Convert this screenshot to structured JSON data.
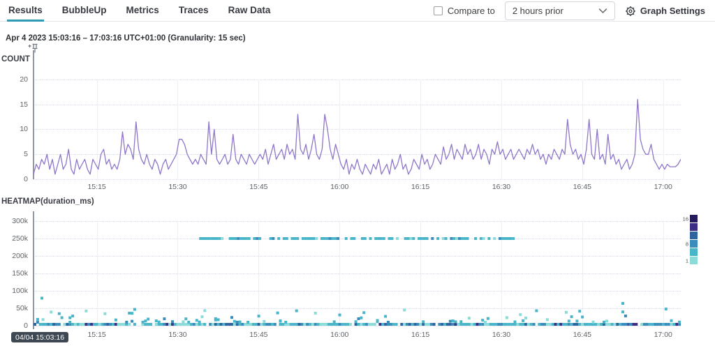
{
  "tabs": [
    {
      "label": "Results",
      "active": true
    },
    {
      "label": "BubbleUp",
      "active": false
    },
    {
      "label": "Metrics",
      "active": false
    },
    {
      "label": "Traces",
      "active": false
    },
    {
      "label": "Raw Data",
      "active": false
    }
  ],
  "controls": {
    "compare_label": "Compare to",
    "compare_checked": false,
    "compare_value": "2 hours prior",
    "settings_label": "Graph Settings"
  },
  "header": {
    "time_range": "Apr 4 2023 15:03:16 – 17:03:16 UTC+01:00 (Granularity: 15 sec)"
  },
  "colors": {
    "accent_teal": "#2e9ab3",
    "line_purple": "#8f76c9",
    "axis": "#9097a0",
    "grid_dotted": "#d8dae2",
    "grid_vertical": "#eff0f5",
    "tooltip_bg": "#3e4852"
  },
  "chart_data": [
    {
      "type": "line",
      "title": "COUNT",
      "color": "#8f76c9",
      "x_start": "15:03:16",
      "x_end": "17:03:16",
      "duration_min": 120,
      "sample_interval_sec": 30,
      "ylim": [
        0,
        20
      ],
      "y_ticks": [
        0,
        5,
        10,
        15,
        20
      ],
      "x_ticks": [
        {
          "label": "15:15",
          "min": 11.73
        },
        {
          "label": "15:30",
          "min": 26.73
        },
        {
          "label": "15:45",
          "min": 41.73
        },
        {
          "label": "16:00",
          "min": 56.73
        },
        {
          "label": "16:15",
          "min": 71.73
        },
        {
          "label": "16:30",
          "min": 86.73
        },
        {
          "label": "16:45",
          "min": 101.73
        },
        {
          "label": "17:00",
          "min": 116.73
        }
      ],
      "values": [
        1,
        3,
        2,
        4,
        3,
        5,
        2,
        4,
        1,
        3,
        5,
        2,
        3,
        6,
        2,
        1,
        4,
        2,
        3,
        4,
        2,
        1,
        4,
        3,
        2,
        5,
        6,
        3,
        4,
        2,
        3,
        2,
        4,
        9.5,
        5,
        7,
        6,
        4,
        11.5,
        6,
        4,
        3,
        5,
        3,
        2,
        4,
        3,
        1,
        3,
        4,
        2,
        3,
        4,
        5,
        8,
        8,
        7,
        5,
        4,
        3,
        4,
        3,
        5,
        4,
        3,
        11.5,
        5,
        10,
        4,
        3,
        4,
        5,
        3,
        4,
        9,
        4,
        3,
        5,
        4,
        3,
        5,
        4,
        3,
        4,
        5,
        4,
        6,
        3,
        5,
        7,
        4,
        5,
        6,
        4,
        7,
        5,
        6,
        4,
        13,
        6,
        5,
        7,
        4,
        6,
        9,
        5,
        4,
        6,
        13,
        10,
        6,
        4,
        7,
        5,
        3,
        2,
        4,
        1,
        3,
        2,
        4,
        2,
        1,
        3,
        2,
        1,
        3,
        2,
        4,
        1,
        2,
        3,
        1,
        4,
        2,
        3,
        5,
        2,
        3,
        1,
        2,
        4,
        3,
        2,
        5,
        3,
        4,
        2,
        3,
        5,
        4,
        3,
        6.5,
        4,
        5,
        7,
        4,
        6,
        5,
        4,
        7,
        5,
        6,
        4,
        5,
        7,
        4,
        6,
        5,
        3,
        6,
        5,
        7.5,
        5,
        6,
        4,
        5,
        6,
        4,
        5,
        6,
        5,
        4,
        6,
        5,
        7,
        5,
        6,
        4,
        5,
        3,
        5,
        4,
        6,
        5,
        4,
        6,
        5,
        12,
        7,
        5,
        6,
        4,
        5,
        3,
        6,
        12,
        5,
        4,
        10,
        4,
        5,
        3,
        9,
        4,
        5,
        3,
        4,
        2,
        3,
        4,
        2,
        3,
        5,
        16,
        8,
        6,
        5,
        5,
        7,
        4,
        3,
        2,
        3,
        2,
        3,
        2.5,
        2.5,
        2.5,
        3,
        4
      ]
    },
    {
      "type": "heatmap",
      "title": "HEATMAP(duration_ms)",
      "tooltip": "04/04 15:03:16",
      "duration_min": 120,
      "ylim": [
        0,
        300000
      ],
      "y_ticks": [
        "0",
        "50k",
        "100k",
        "150k",
        "200k",
        "250k",
        "300k"
      ],
      "y_tick_step": 50000,
      "seed": 7,
      "palette_dark_to_light": [
        "#261a5e",
        "#3d2d84",
        "#2f639f",
        "#3a8cba",
        "#49b5c9",
        "#8bdbd9"
      ],
      "legend": {
        "max_label": "16",
        "mid_label": "8",
        "min_label": "1",
        "labels": [
          {
            "label": "16",
            "swatch_index": 0
          },
          {
            "label": "8",
            "swatch_index": 3
          },
          {
            "label": "1",
            "swatch_index": 5
          }
        ]
      },
      "bands": [
        {
          "type": "dense-row",
          "y_value": 0,
          "t_start": 0,
          "t_end": 120,
          "density": 0.95
        },
        {
          "type": "stack",
          "y_min": 6000,
          "y_max": 45000,
          "t_start": 0,
          "t_end": 120,
          "density": 0.22,
          "left_boost_until_min": 33,
          "left_boost_factor": 1.7
        },
        {
          "type": "dash-row",
          "y_value": 250000,
          "t_start": 30.7,
          "t_end": 89.6,
          "density": 0.72
        },
        {
          "type": "outliers",
          "points": [
            {
              "t": 1.3,
              "y": 75000
            },
            {
              "t": 109,
              "y": 60000
            }
          ]
        }
      ]
    }
  ]
}
